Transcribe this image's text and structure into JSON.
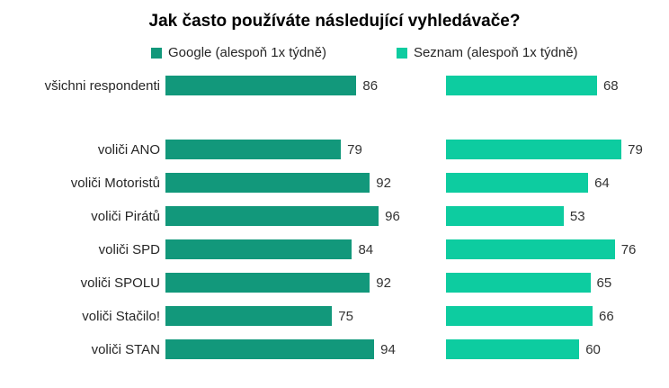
{
  "title": "Jak často používáte následující vyhledávače?",
  "colors": {
    "google_bar": "#12987B",
    "seznam_bar": "#0DCCA0",
    "title_text": "#000000",
    "label_text": "#262626",
    "value_text": "#333333",
    "background": "#FFFFFF"
  },
  "legend": [
    {
      "label": "Google (alespoň 1x týdně)",
      "color": "#12987B"
    },
    {
      "label": "Seznam (alespoň 1x týdně)",
      "color": "#0DCCA0"
    }
  ],
  "chart_data": {
    "type": "bar",
    "orientation": "horizontal",
    "title": "Jak často používáte následující vyhledávače?",
    "categories": [
      "všichni respondenti",
      "voliči ANO",
      "voliči Motoristů",
      "voliči Pirátů",
      "voliči SPD",
      "voliči SPOLU",
      "voliči Stačilo!",
      "voliči STAN"
    ],
    "series": [
      {
        "name": "Google (alespoň 1x týdně)",
        "color": "#12987B",
        "values": [
          86,
          79,
          92,
          96,
          84,
          92,
          75,
          94
        ]
      },
      {
        "name": "Seznam (alespoň 1x týdně)",
        "color": "#0DCCA0",
        "values": [
          68,
          79,
          64,
          53,
          76,
          65,
          66,
          60
        ]
      }
    ],
    "xlim": [
      0,
      100
    ],
    "value_labels": true,
    "grid": false,
    "axes_visible": false,
    "legend_position": "top",
    "gap_after_category_index": 0
  }
}
